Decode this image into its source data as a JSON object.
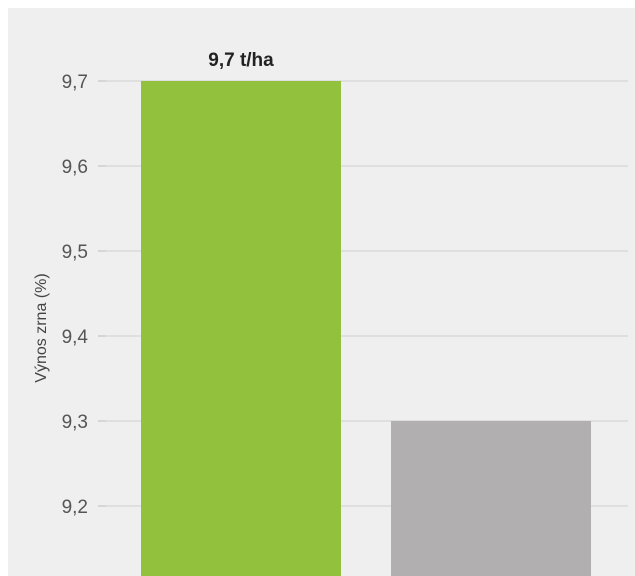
{
  "chart_data": {
    "type": "bar",
    "categories": [
      "",
      ""
    ],
    "values": [
      9.7,
      9.3
    ],
    "bar_colors": [
      "#92c13e",
      "#b1afb0"
    ],
    "data_labels": [
      "9,7 t/ha",
      ""
    ],
    "ylabel": "Výnos zrna (%)",
    "xlabel": "",
    "yticks": [
      9.2,
      9.3,
      9.4,
      9.5,
      9.6,
      9.7
    ],
    "ytick_labels": [
      "9,2",
      "9,3",
      "9,4",
      "9,5",
      "9,6",
      "9,7"
    ],
    "ylim": [
      9.12,
      9.74
    ],
    "grid": true,
    "legend": "none"
  }
}
